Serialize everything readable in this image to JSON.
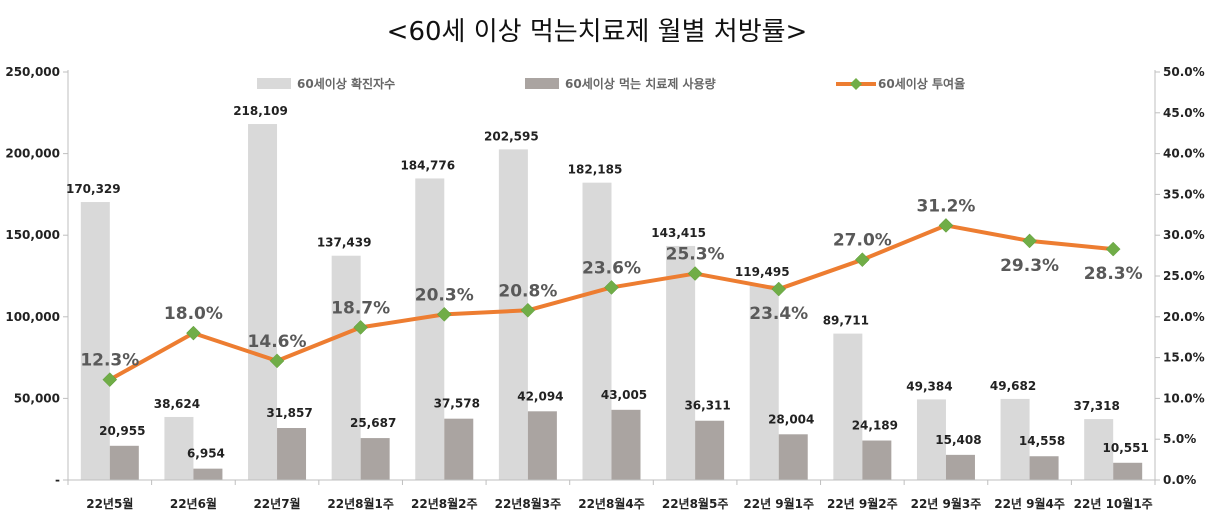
{
  "chart_data": {
    "type": "bar",
    "title": "<60세 이상 먹는치료제 월별 처방률>",
    "categories": [
      "22년5월",
      "22년6월",
      "22년7월",
      "22년8월1주",
      "22년8월2주",
      "22년8월3주",
      "22년8월4주",
      "22년8월5주",
      "22년 9월1주",
      "22년 9월2주",
      "22년 9월3주",
      "22년 9월4주",
      "22년 10월1주"
    ],
    "series": [
      {
        "name": "60세이상 확진자수",
        "kind": "bar",
        "axis": "left",
        "color": "#d9d9d9",
        "values": [
          170329,
          38624,
          218109,
          137439,
          184776,
          202595,
          182185,
          143415,
          119495,
          89711,
          49384,
          49682,
          37318
        ],
        "labels": [
          "170,329",
          "38,624",
          "218,109",
          "137,439",
          "184,776",
          "202,595",
          "182,185",
          "143,415",
          "119,495",
          "89,711",
          "49,384",
          "49,682",
          "37,318"
        ]
      },
      {
        "name": "60세이상 먹는 치료제 사용량",
        "kind": "bar",
        "axis": "left",
        "color": "#aaa4a1",
        "values": [
          20955,
          6954,
          31857,
          25687,
          37578,
          42094,
          43005,
          36311,
          28004,
          24189,
          15408,
          14558,
          10551
        ],
        "labels": [
          "20,955",
          "6,954",
          "31,857",
          "25,687",
          "37,578",
          "42,094",
          "43,005",
          "36,311",
          "28,004",
          "24,189",
          "15,408",
          "14,558",
          "10,551"
        ]
      },
      {
        "name": "60세이상 투여율",
        "kind": "line",
        "axis": "right",
        "color": "#ed7d31",
        "marker_color": "#70ad47",
        "values": [
          12.3,
          18.0,
          14.6,
          18.7,
          20.3,
          20.8,
          23.6,
          25.3,
          23.4,
          27.0,
          31.2,
          29.3,
          28.3
        ],
        "labels": [
          "12.3%",
          "18.0%",
          "14.6%",
          "18.7%",
          "20.3%",
          "20.8%",
          "23.6%",
          "25.3%",
          "23.4%",
          "27.0%",
          "31.2%",
          "29.3%",
          "28.3%"
        ]
      }
    ],
    "left_axis": {
      "ylim": [
        0,
        250000
      ],
      "ticks": [
        "-",
        "50,000",
        "100,000",
        "150,000",
        "200,000",
        "250,000"
      ]
    },
    "right_axis": {
      "ylim": [
        0,
        50
      ],
      "ticks": [
        "0.0%",
        "5.0%",
        "10.0%",
        "15.0%",
        "20.0%",
        "25.0%",
        "30.0%",
        "35.0%",
        "40.0%",
        "45.0%",
        "50.0%"
      ]
    },
    "grid": false,
    "legend_position": "top"
  }
}
